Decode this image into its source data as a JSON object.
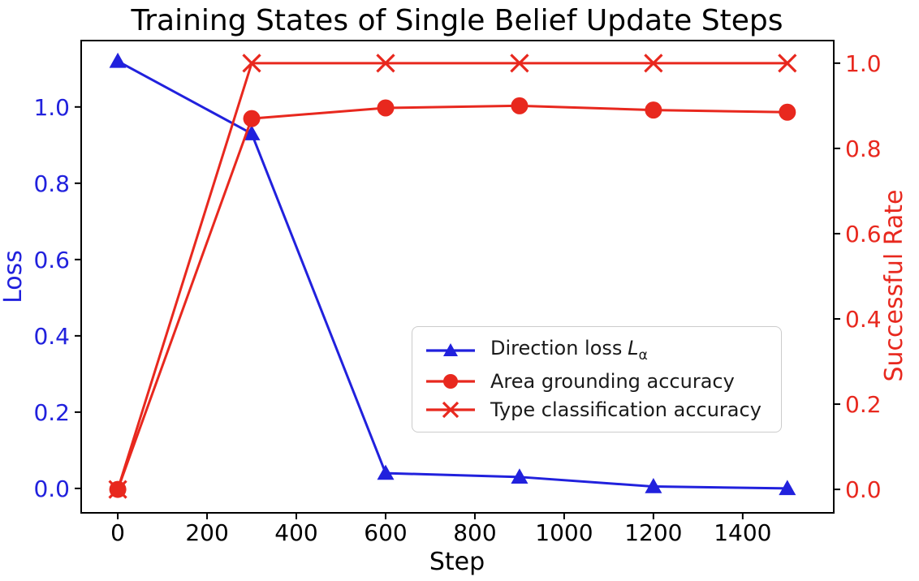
{
  "title": "Training States of Single Belief Update Steps",
  "chart_data": {
    "type": "line",
    "x": [
      0,
      300,
      600,
      900,
      1200,
      1500
    ],
    "series": [
      {
        "name": "Direction loss Lα",
        "axis": "left",
        "color": "#2121dd",
        "marker": "triangle",
        "values": [
          1.12,
          0.93,
          0.04,
          0.03,
          0.005,
          0.0
        ]
      },
      {
        "name": "Area grounding accuracy",
        "axis": "right",
        "color": "#e8281e",
        "marker": "circle",
        "values": [
          0.0,
          0.87,
          0.895,
          0.9,
          0.89,
          0.885
        ]
      },
      {
        "name": "Type classification accuracy",
        "axis": "right",
        "color": "#e8281e",
        "marker": "x",
        "values": [
          0.0,
          1.0,
          1.0,
          1.0,
          1.0,
          1.0
        ]
      }
    ],
    "xlabel": "Step",
    "ylabel_left": "Loss",
    "ylabel_right": "Successful Rate",
    "x_ticks": [
      0,
      200,
      400,
      600,
      800,
      1000,
      1200,
      1400
    ],
    "left_ticks": [
      "0.0",
      "0.2",
      "0.4",
      "0.6",
      "0.8",
      "1.0"
    ],
    "right_ticks": [
      "0.0",
      "0.2",
      "0.4",
      "0.6",
      "0.8",
      "1.0"
    ],
    "xlim": [
      -82,
      1604
    ],
    "ylim_left": [
      -0.064,
      1.174
    ],
    "ylim_right": [
      -0.055,
      1.053
    ],
    "grid": false,
    "legend_position": "center-right",
    "colors": {
      "left_axis": "#2121dd",
      "right_axis": "#e8281e",
      "spine": "#000000",
      "legend_border": "#cccccc"
    }
  },
  "legend": {
    "entries": [
      {
        "prefix": "Direction loss",
        "math_base": "L",
        "math_sub": "α"
      },
      {
        "label": "Area grounding accuracy"
      },
      {
        "label": "Type classification accuracy"
      }
    ]
  }
}
